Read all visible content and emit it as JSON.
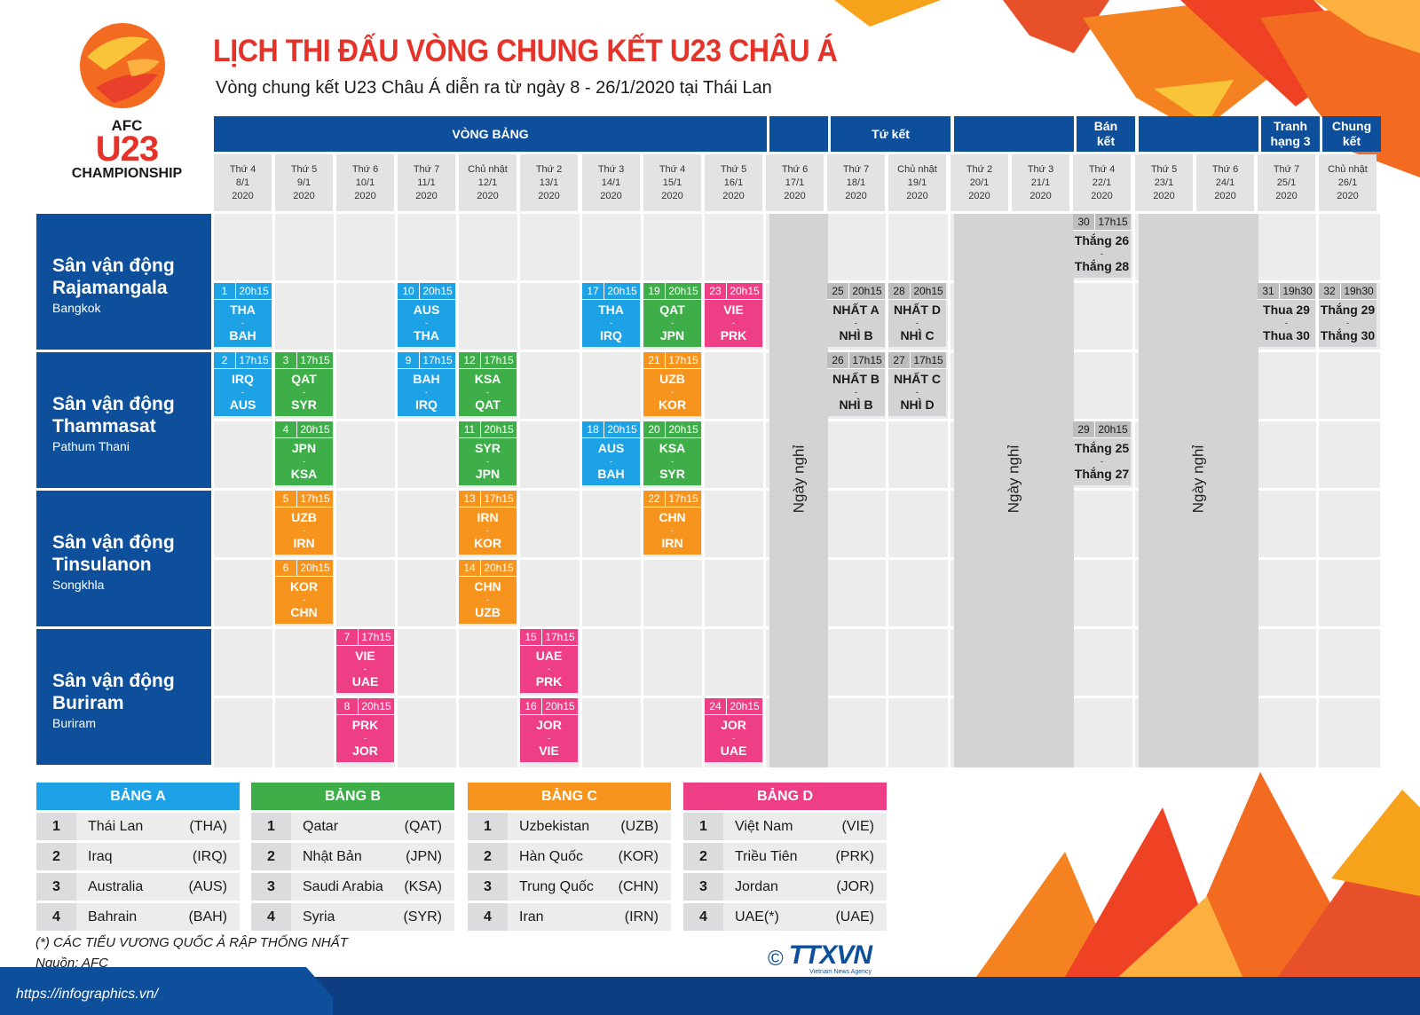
{
  "title": "LỊCH THI ĐẤU VÒNG CHUNG KẾT U23 CHÂU Á",
  "subtitle": "Vòng chung kết U23 Châu Á diễn ra từ ngày 8 - 26/1/2020 tại Thái Lan",
  "logo": {
    "line1": "AFC",
    "line2": "U23",
    "line3": "CHAMPIONSHIP"
  },
  "colors": {
    "A": "#1ea2e6",
    "B": "#3eae49",
    "C": "#f7941d",
    "D": "#ee3f86",
    "KO": "#d3d3d5",
    "venue": "#0d4f9a",
    "title": "#e5332a"
  },
  "stages": {
    "group": "VÒNG BẢNG",
    "qf": "Tứ kết",
    "sf": "Bán\nkết",
    "third": "Tranh\nhạng 3",
    "final": "Chung\nkết"
  },
  "dates": [
    "Thứ 4\n8/1\n2020",
    "Thứ 5\n9/1\n2020",
    "Thứ 6\n10/1\n2020",
    "Thứ 7\n11/1\n2020",
    "Chủ nhật\n12/1\n2020",
    "Thứ 2\n13/1\n2020",
    "Thứ 3\n14/1\n2020",
    "Thứ 4\n15/1\n2020",
    "Thứ 5\n16/1\n2020",
    "Thứ 6\n17/1\n2020",
    "Thứ 7\n18/1\n2020",
    "Chủ nhật\n19/1\n2020",
    "Thứ 2\n20/1\n2020",
    "Thứ 3\n21/1\n2020",
    "Thứ 4\n22/1\n2020",
    "Thứ 5\n23/1\n2020",
    "Thứ 6\n24/1\n2020",
    "Thứ 7\n25/1\n2020",
    "Chủ nhật\n26/1\n2020"
  ],
  "rest_label": "Ngày nghỉ",
  "venues": [
    {
      "name": "Sân vận động\nRajamangala",
      "city": "Bangkok"
    },
    {
      "name": "Sân vận động\nThammasat",
      "city": "Pathum Thani"
    },
    {
      "name": "Sân vận động\nTinsulanon",
      "city": "Songkhla"
    },
    {
      "name": "Sân vận động\nBuriram",
      "city": "Buriram"
    }
  ],
  "matches": [
    {
      "n": "1",
      "t": "20h15",
      "a": "THA",
      "b": "BAH",
      "g": "A",
      "col": 0,
      "row": 1
    },
    {
      "n": "2",
      "t": "17h15",
      "a": "IRQ",
      "b": "AUS",
      "g": "A",
      "col": 0,
      "row": 2
    },
    {
      "n": "3",
      "t": "17h15",
      "a": "QAT",
      "b": "SYR",
      "g": "B",
      "col": 1,
      "row": 2
    },
    {
      "n": "4",
      "t": "20h15",
      "a": "JPN",
      "b": "KSA",
      "g": "B",
      "col": 1,
      "row": 3
    },
    {
      "n": "5",
      "t": "17h15",
      "a": "UZB",
      "b": "IRN",
      "g": "C",
      "col": 1,
      "row": 4
    },
    {
      "n": "6",
      "t": "20h15",
      "a": "KOR",
      "b": "CHN",
      "g": "C",
      "col": 1,
      "row": 5
    },
    {
      "n": "7",
      "t": "17h15",
      "a": "VIE",
      "b": "UAE",
      "g": "D",
      "col": 2,
      "row": 6
    },
    {
      "n": "8",
      "t": "20h15",
      "a": "PRK",
      "b": "JOR",
      "g": "D",
      "col": 2,
      "row": 7
    },
    {
      "n": "9",
      "t": "17h15",
      "a": "BAH",
      "b": "IRQ",
      "g": "A",
      "col": 3,
      "row": 2
    },
    {
      "n": "10",
      "t": "20h15",
      "a": "AUS",
      "b": "THA",
      "g": "A",
      "col": 3,
      "row": 1
    },
    {
      "n": "12",
      "t": "17h15",
      "a": "KSA",
      "b": "QAT",
      "g": "B",
      "col": 4,
      "row": 2
    },
    {
      "n": "11",
      "t": "20h15",
      "a": "SYR",
      "b": "JPN",
      "g": "B",
      "col": 4,
      "row": 3
    },
    {
      "n": "13",
      "t": "17h15",
      "a": "IRN",
      "b": "KOR",
      "g": "C",
      "col": 4,
      "row": 4
    },
    {
      "n": "14",
      "t": "20h15",
      "a": "CHN",
      "b": "UZB",
      "g": "C",
      "col": 4,
      "row": 5
    },
    {
      "n": "15",
      "t": "17h15",
      "a": "UAE",
      "b": "PRK",
      "g": "D",
      "col": 5,
      "row": 6
    },
    {
      "n": "16",
      "t": "20h15",
      "a": "JOR",
      "b": "VIE",
      "g": "D",
      "col": 5,
      "row": 7
    },
    {
      "n": "17",
      "t": "20h15",
      "a": "THA",
      "b": "IRQ",
      "g": "A",
      "col": 6,
      "row": 1
    },
    {
      "n": "18",
      "t": "20h15",
      "a": "AUS",
      "b": "BAH",
      "g": "A",
      "col": 6,
      "row": 3
    },
    {
      "n": "19",
      "t": "20h15",
      "a": "QAT",
      "b": "JPN",
      "g": "B",
      "col": 7,
      "row": 1
    },
    {
      "n": "21",
      "t": "17h15",
      "a": "UZB",
      "b": "KOR",
      "g": "C",
      "col": 7,
      "row": 2
    },
    {
      "n": "20",
      "t": "20h15",
      "a": "KSA",
      "b": "SYR",
      "g": "B",
      "col": 7,
      "row": 3
    },
    {
      "n": "22",
      "t": "17h15",
      "a": "CHN",
      "b": "IRN",
      "g": "C",
      "col": 7,
      "row": 4
    },
    {
      "n": "23",
      "t": "20h15",
      "a": "VIE",
      "b": "PRK",
      "g": "D",
      "col": 8,
      "row": 1
    },
    {
      "n": "24",
      "t": "20h15",
      "a": "JOR",
      "b": "UAE",
      "g": "D",
      "col": 8,
      "row": 7
    },
    {
      "n": "25",
      "t": "20h15",
      "a": "NHẤT A",
      "b": "NHÌ B",
      "g": "KO",
      "col": 10,
      "row": 1
    },
    {
      "n": "26",
      "t": "17h15",
      "a": "NHẤT B",
      "b": "NHÌ B",
      "g": "KO",
      "col": 10,
      "row": 2
    },
    {
      "n": "28",
      "t": "20h15",
      "a": "NHẤT D",
      "b": "NHÌ C",
      "g": "KO",
      "col": 11,
      "row": 1
    },
    {
      "n": "27",
      "t": "17h15",
      "a": "NHẤT C",
      "b": "NHÌ D",
      "g": "KO",
      "col": 11,
      "row": 2
    },
    {
      "n": "30",
      "t": "17h15",
      "a": "Thắng 26",
      "b": "Thắng 28",
      "g": "KO",
      "col": 14,
      "row": 0
    },
    {
      "n": "29",
      "t": "20h15",
      "a": "Thắng 25",
      "b": "Thắng 27",
      "g": "KO",
      "col": 14,
      "row": 3
    },
    {
      "n": "31",
      "t": "19h30",
      "a": "Thua 29",
      "b": "Thua 30",
      "g": "KO",
      "col": 17,
      "row": 1
    },
    {
      "n": "32",
      "t": "19h30",
      "a": "Thắng 29",
      "b": "Thắng 30",
      "g": "KO",
      "col": 18,
      "row": 1
    }
  ],
  "groups": [
    {
      "name": "BẢNG A",
      "key": "A",
      "teams": [
        [
          "1",
          "Thái Lan",
          "(THA)"
        ],
        [
          "2",
          "Iraq",
          "(IRQ)"
        ],
        [
          "3",
          "Australia",
          "(AUS)"
        ],
        [
          "4",
          "Bahrain",
          "(BAH)"
        ]
      ]
    },
    {
      "name": "BẢNG B",
      "key": "B",
      "teams": [
        [
          "1",
          "Qatar",
          "(QAT)"
        ],
        [
          "2",
          "Nhật Bản",
          "(JPN)"
        ],
        [
          "3",
          "Saudi Arabia",
          "(KSA)"
        ],
        [
          "4",
          "Syria",
          "(SYR)"
        ]
      ]
    },
    {
      "name": "BẢNG C",
      "key": "C",
      "teams": [
        [
          "1",
          "Uzbekistan",
          "(UZB)"
        ],
        [
          "2",
          "Hàn Quốc",
          "(KOR)"
        ],
        [
          "3",
          "Trung Quốc",
          "(CHN)"
        ],
        [
          "4",
          "Iran",
          "(IRN)"
        ]
      ]
    },
    {
      "name": "BẢNG D",
      "key": "D",
      "teams": [
        [
          "1",
          "Việt Nam",
          "(VIE)"
        ],
        [
          "2",
          "Triều Tiên",
          "(PRK)"
        ],
        [
          "3",
          "Jordan",
          "(JOR)"
        ],
        [
          "4",
          "UAE(*)",
          "(UAE)"
        ]
      ]
    }
  ],
  "note": "(*) CÁC TIỂU VƯƠNG QUỐC Ả RẬP THỐNG NHẤT",
  "source": "Nguồn: AFC",
  "agency": "TTXVN",
  "agency_sub": "Vietnam News Agency",
  "copyright_symbol": "©",
  "url": "https://infographics.vn/"
}
